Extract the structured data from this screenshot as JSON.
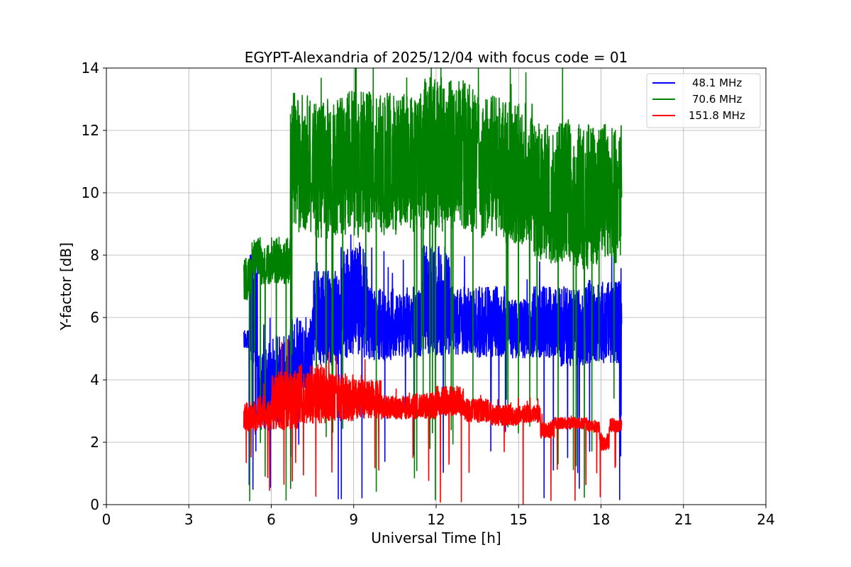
{
  "chart_data": {
    "type": "line",
    "title": "EGYPT-Alexandria of 2025/12/04 with focus code = 01",
    "xlabel": "Universal Time [h]",
    "ylabel": "Y-factor [dB]",
    "xlim": [
      0,
      24
    ],
    "ylim": [
      0,
      14
    ],
    "xticks": [
      0,
      3,
      6,
      9,
      12,
      15,
      18,
      21,
      24
    ],
    "yticks": [
      0,
      2,
      4,
      6,
      8,
      10,
      12,
      14
    ],
    "grid": true,
    "legend_position": "top-right",
    "series": [
      {
        "name": "48.1 MHz",
        "color": "#0000ff",
        "segments": [
          {
            "t0": 5.0,
            "t1": 5.2,
            "lo": 5.0,
            "hi": 5.6
          },
          {
            "t0": 5.2,
            "t1": 5.5,
            "lo": 4.2,
            "hi": 8.2
          },
          {
            "t0": 5.5,
            "t1": 6.0,
            "lo": 2.2,
            "hi": 5.0
          },
          {
            "t0": 6.0,
            "t1": 6.7,
            "lo": 2.5,
            "hi": 5.5
          },
          {
            "t0": 6.7,
            "t1": 7.5,
            "lo": 3.5,
            "hi": 6.0
          },
          {
            "t0": 7.5,
            "t1": 8.5,
            "lo": 4.3,
            "hi": 7.5
          },
          {
            "t0": 8.5,
            "t1": 9.5,
            "lo": 4.5,
            "hi": 8.3
          },
          {
            "t0": 9.5,
            "t1": 10.5,
            "lo": 4.5,
            "hi": 7.0
          },
          {
            "t0": 10.5,
            "t1": 11.5,
            "lo": 4.6,
            "hi": 6.8
          },
          {
            "t0": 11.5,
            "t1": 12.5,
            "lo": 4.6,
            "hi": 8.3
          },
          {
            "t0": 12.5,
            "t1": 13.5,
            "lo": 4.7,
            "hi": 7.0
          },
          {
            "t0": 13.5,
            "t1": 14.5,
            "lo": 4.6,
            "hi": 7.0
          },
          {
            "t0": 14.5,
            "t1": 15.5,
            "lo": 4.6,
            "hi": 6.6
          },
          {
            "t0": 15.5,
            "t1": 16.5,
            "lo": 4.6,
            "hi": 7.0
          },
          {
            "t0": 16.5,
            "t1": 17.5,
            "lo": 4.3,
            "hi": 7.0
          },
          {
            "t0": 17.5,
            "t1": 18.75,
            "lo": 4.4,
            "hi": 7.2
          }
        ]
      },
      {
        "name": "70.6 MHz",
        "color": "#008000",
        "segments": [
          {
            "t0": 5.0,
            "t1": 5.3,
            "lo": 6.5,
            "hi": 7.9
          },
          {
            "t0": 5.3,
            "t1": 5.6,
            "lo": 7.3,
            "hi": 8.6
          },
          {
            "t0": 5.6,
            "t1": 6.0,
            "lo": 7.0,
            "hi": 8.3
          },
          {
            "t0": 6.0,
            "t1": 6.7,
            "lo": 7.0,
            "hi": 8.6
          },
          {
            "t0": 6.7,
            "t1": 7.5,
            "lo": 8.5,
            "hi": 13.2
          },
          {
            "t0": 7.5,
            "t1": 8.5,
            "lo": 8.2,
            "hi": 13.0
          },
          {
            "t0": 8.5,
            "t1": 9.5,
            "lo": 8.3,
            "hi": 13.3
          },
          {
            "t0": 9.5,
            "t1": 10.5,
            "lo": 8.4,
            "hi": 13.3
          },
          {
            "t0": 10.5,
            "t1": 11.5,
            "lo": 8.4,
            "hi": 13.2
          },
          {
            "t0": 11.5,
            "t1": 12.5,
            "lo": 8.5,
            "hi": 13.7
          },
          {
            "t0": 12.5,
            "t1": 13.5,
            "lo": 8.5,
            "hi": 13.6
          },
          {
            "t0": 13.5,
            "t1": 14.5,
            "lo": 8.3,
            "hi": 13.1
          },
          {
            "t0": 14.5,
            "t1": 15.5,
            "lo": 8.1,
            "hi": 12.9
          },
          {
            "t0": 15.5,
            "t1": 16.0,
            "lo": 7.6,
            "hi": 12.3
          },
          {
            "t0": 16.0,
            "t1": 17.0,
            "lo": 7.5,
            "hi": 12.4
          },
          {
            "t0": 17.0,
            "t1": 18.0,
            "lo": 7.3,
            "hi": 12.2
          },
          {
            "t0": 18.0,
            "t1": 18.75,
            "lo": 7.5,
            "hi": 12.2
          }
        ]
      },
      {
        "name": "151.8 MHz",
        "color": "#ff0000",
        "segments": [
          {
            "t0": 5.0,
            "t1": 5.5,
            "lo": 2.3,
            "hi": 3.3
          },
          {
            "t0": 5.5,
            "t1": 6.0,
            "lo": 2.4,
            "hi": 3.5
          },
          {
            "t0": 6.0,
            "t1": 7.0,
            "lo": 2.3,
            "hi": 4.3
          },
          {
            "t0": 7.0,
            "t1": 8.0,
            "lo": 2.5,
            "hi": 4.5
          },
          {
            "t0": 8.0,
            "t1": 9.0,
            "lo": 2.6,
            "hi": 4.2
          },
          {
            "t0": 9.0,
            "t1": 10.0,
            "lo": 2.7,
            "hi": 4.0
          },
          {
            "t0": 10.0,
            "t1": 11.0,
            "lo": 2.7,
            "hi": 3.5
          },
          {
            "t0": 11.0,
            "t1": 12.0,
            "lo": 2.7,
            "hi": 3.6
          },
          {
            "t0": 12.0,
            "t1": 13.0,
            "lo": 2.8,
            "hi": 3.8
          },
          {
            "t0": 13.0,
            "t1": 14.0,
            "lo": 2.6,
            "hi": 3.4
          },
          {
            "t0": 14.0,
            "t1": 15.0,
            "lo": 2.5,
            "hi": 3.2
          },
          {
            "t0": 15.0,
            "t1": 15.8,
            "lo": 2.6,
            "hi": 3.2
          },
          {
            "t0": 15.8,
            "t1": 16.3,
            "lo": 2.1,
            "hi": 2.7
          },
          {
            "t0": 16.3,
            "t1": 17.5,
            "lo": 2.4,
            "hi": 2.8
          },
          {
            "t0": 17.5,
            "t1": 17.95,
            "lo": 2.3,
            "hi": 2.7
          },
          {
            "t0": 17.95,
            "t1": 18.3,
            "lo": 1.7,
            "hi": 2.3
          },
          {
            "t0": 18.3,
            "t1": 18.75,
            "lo": 2.3,
            "hi": 2.8
          }
        ]
      }
    ]
  }
}
